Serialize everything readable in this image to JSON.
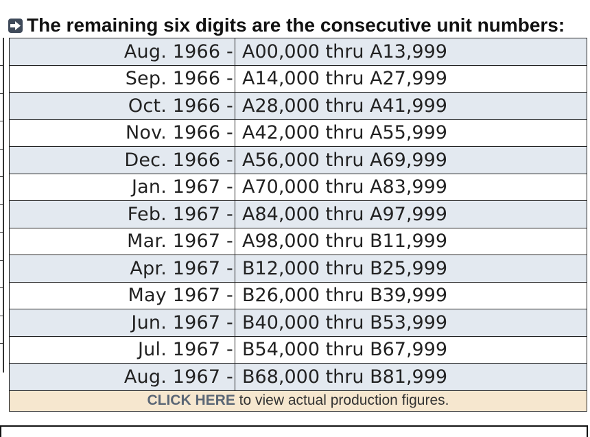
{
  "heading": {
    "icon": "arrow-right-icon",
    "text": "The remaining six digits are the consecutive unit numbers:"
  },
  "rows": [
    {
      "month": "Aug. 1966 -",
      "range": "A00,000 thru A13,999"
    },
    {
      "month": "Sep. 1966 -",
      "range": "A14,000 thru A27,999"
    },
    {
      "month": "Oct. 1966 -",
      "range": "A28,000 thru A41,999"
    },
    {
      "month": "Nov. 1966 -",
      "range": "A42,000 thru A55,999"
    },
    {
      "month": "Dec. 1966 -",
      "range": "A56,000 thru A69,999"
    },
    {
      "month": "Jan. 1967 -",
      "range": "A70,000 thru A83,999"
    },
    {
      "month": "Feb. 1967 -",
      "range": "A84,000 thru A97,999"
    },
    {
      "month": "Mar. 1967 -",
      "range": "A98,000 thru B11,999"
    },
    {
      "month": "Apr. 1967 -",
      "range": "B12,000 thru B25,999"
    },
    {
      "month": "May 1967 -",
      "range": "B26,000 thru B39,999"
    },
    {
      "month": "Jun. 1967 -",
      "range": "B40,000 thru B53,999"
    },
    {
      "month": "Jul. 1967 -",
      "range": "B54,000 thru B67,999"
    },
    {
      "month": "Aug. 1967 -",
      "range": "B68,000 thru B81,999"
    }
  ],
  "footer": {
    "link_text": "CLICK HERE",
    "rest_text": " to view actual production figures."
  },
  "colors": {
    "row_shade": "#e3e9f0",
    "footer_bg": "#f6e7cf",
    "link": "#5a6675"
  }
}
